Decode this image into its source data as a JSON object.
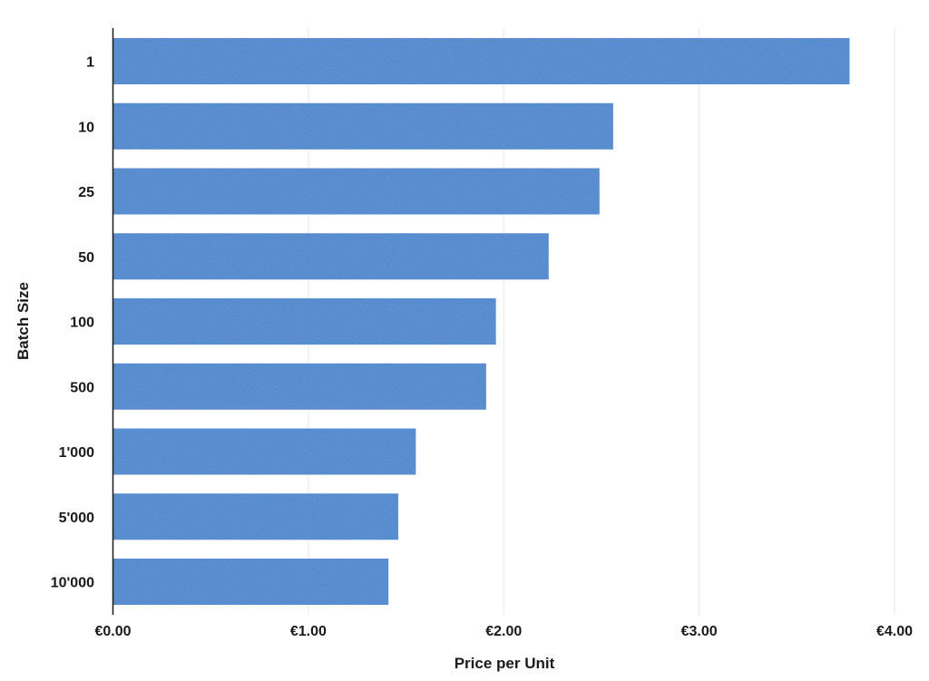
{
  "chart_data": {
    "type": "bar",
    "orientation": "horizontal",
    "categories": [
      "1",
      "10",
      "25",
      "50",
      "100",
      "500",
      "1'000",
      "5'000",
      "10'000"
    ],
    "values": [
      3.77,
      2.56,
      2.49,
      2.23,
      1.96,
      1.91,
      1.55,
      1.46,
      1.41
    ],
    "title": "",
    "xlabel": "Price per Unit",
    "ylabel": "Batch Size",
    "xlim": [
      0,
      4
    ],
    "x_ticks": [
      0,
      1,
      2,
      3,
      4
    ],
    "x_tick_labels": [
      "€0.00",
      "€1.00",
      "€2.00",
      "€3.00",
      "€4.00"
    ],
    "grid": "vertical",
    "legend": "none",
    "bar_color": "#3b82cc"
  }
}
